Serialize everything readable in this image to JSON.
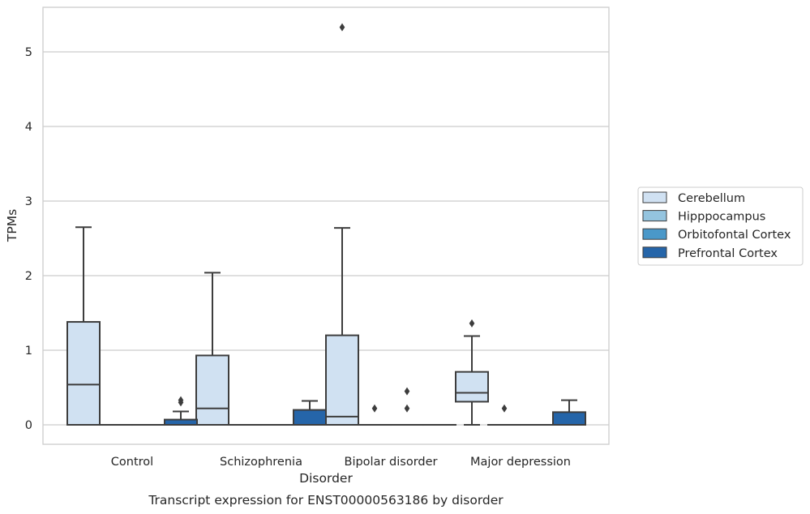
{
  "chart_data": {
    "type": "box",
    "title": "",
    "caption": "Transcript expression for ENST00000563186 by disorder",
    "xlabel": "Disorder",
    "ylabel": "TPMs",
    "ylim": [
      -0.26,
      5.6
    ],
    "yticks": [
      0,
      1,
      2,
      3,
      4,
      5
    ],
    "ytick_labels": [
      "0",
      "1",
      "2",
      "3",
      "4",
      "5"
    ],
    "grid": "horizontal",
    "legend_position": "right",
    "categories": [
      "Control",
      "Schizophrenia",
      "Bipolar disorder",
      "Major depression"
    ],
    "series": [
      {
        "name": "Cerebellum",
        "color": "#d0e1f2",
        "boxes": [
          {
            "whisker_low": 0,
            "q1": 0,
            "median": 0.54,
            "q3": 1.38,
            "whisker_high": 2.65,
            "outliers": []
          },
          {
            "whisker_low": 0,
            "q1": 0,
            "median": 0.22,
            "q3": 0.93,
            "whisker_high": 2.04,
            "outliers": []
          },
          {
            "whisker_low": 0,
            "q1": 0,
            "median": 0.11,
            "q3": 1.2,
            "whisker_high": 2.64,
            "outliers": [
              5.33
            ]
          },
          {
            "whisker_low": 0,
            "q1": 0.31,
            "median": 0.43,
            "q3": 0.71,
            "whisker_high": 1.19,
            "outliers": [
              1.36
            ]
          }
        ]
      },
      {
        "name": "Hipppocampus",
        "color": "#94c4df",
        "boxes": [
          {
            "whisker_low": 0,
            "q1": 0,
            "median": 0,
            "q3": 0,
            "whisker_high": 0,
            "outliers": []
          },
          {
            "whisker_low": 0,
            "q1": 0,
            "median": 0,
            "q3": 0,
            "whisker_high": 0,
            "outliers": []
          },
          {
            "whisker_low": 0,
            "q1": 0,
            "median": 0,
            "q3": 0,
            "whisker_high": 0,
            "outliers": [
              0.22
            ]
          },
          {
            "whisker_low": 0,
            "q1": 0,
            "median": 0,
            "q3": 0,
            "whisker_high": 0,
            "outliers": [
              0.22
            ]
          }
        ]
      },
      {
        "name": "Orbitofontal Cortex",
        "color": "#4a98c9",
        "boxes": [
          {
            "whisker_low": 0,
            "q1": 0,
            "median": 0,
            "q3": 0,
            "whisker_high": 0,
            "outliers": []
          },
          {
            "whisker_low": 0,
            "q1": 0,
            "median": 0,
            "q3": 0,
            "whisker_high": 0,
            "outliers": []
          },
          {
            "whisker_low": 0,
            "q1": 0,
            "median": 0,
            "q3": 0,
            "whisker_high": 0,
            "outliers": [
              0.22,
              0.45
            ]
          },
          {
            "whisker_low": 0,
            "q1": 0,
            "median": 0,
            "q3": 0,
            "whisker_high": 0,
            "outliers": []
          }
        ]
      },
      {
        "name": "Prefrontal Cortex",
        "color": "#2565a9",
        "boxes": [
          {
            "whisker_low": 0,
            "q1": 0,
            "median": 0,
            "q3": 0.07,
            "whisker_high": 0.18,
            "outliers": [
              0.3,
              0.33
            ]
          },
          {
            "whisker_low": 0,
            "q1": 0,
            "median": 0,
            "q3": 0.2,
            "whisker_high": 0.32,
            "outliers": []
          },
          {
            "whisker_low": 0,
            "q1": 0,
            "median": 0,
            "q3": 0,
            "whisker_high": 0,
            "outliers": []
          },
          {
            "whisker_low": 0,
            "q1": 0,
            "median": 0,
            "q3": 0.17,
            "whisker_high": 0.33,
            "outliers": []
          }
        ]
      }
    ]
  }
}
